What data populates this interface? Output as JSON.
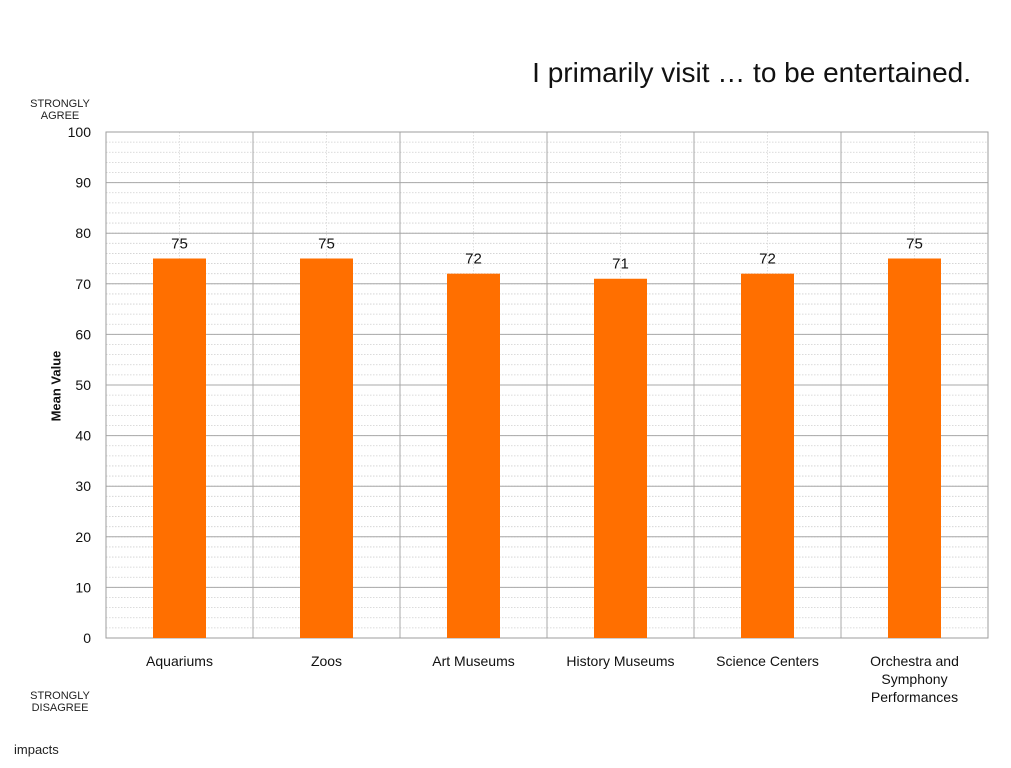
{
  "chart_data": {
    "type": "bar",
    "title": "I primarily visit … to be entertained.",
    "ylabel": "Mean Value",
    "xlabel": "",
    "ylim": [
      0,
      100
    ],
    "yticks": [
      0,
      10,
      20,
      30,
      40,
      50,
      60,
      70,
      80,
      90,
      100
    ],
    "categories": [
      "Aquariums",
      "Zoos",
      "Art Museums",
      "History Museums",
      "Science Centers",
      "Orchestra and Symphony Performances"
    ],
    "values": [
      75,
      75,
      72,
      71,
      72,
      75
    ],
    "data_labels": [
      "75",
      "75",
      "72",
      "71",
      "72",
      "75"
    ],
    "bar_color": "#FF6F00",
    "grid": true,
    "top_scale_note": "STRONGLY AGREE",
    "bottom_scale_note": "STRONGLY DISAGREE"
  },
  "brand": "impacts"
}
